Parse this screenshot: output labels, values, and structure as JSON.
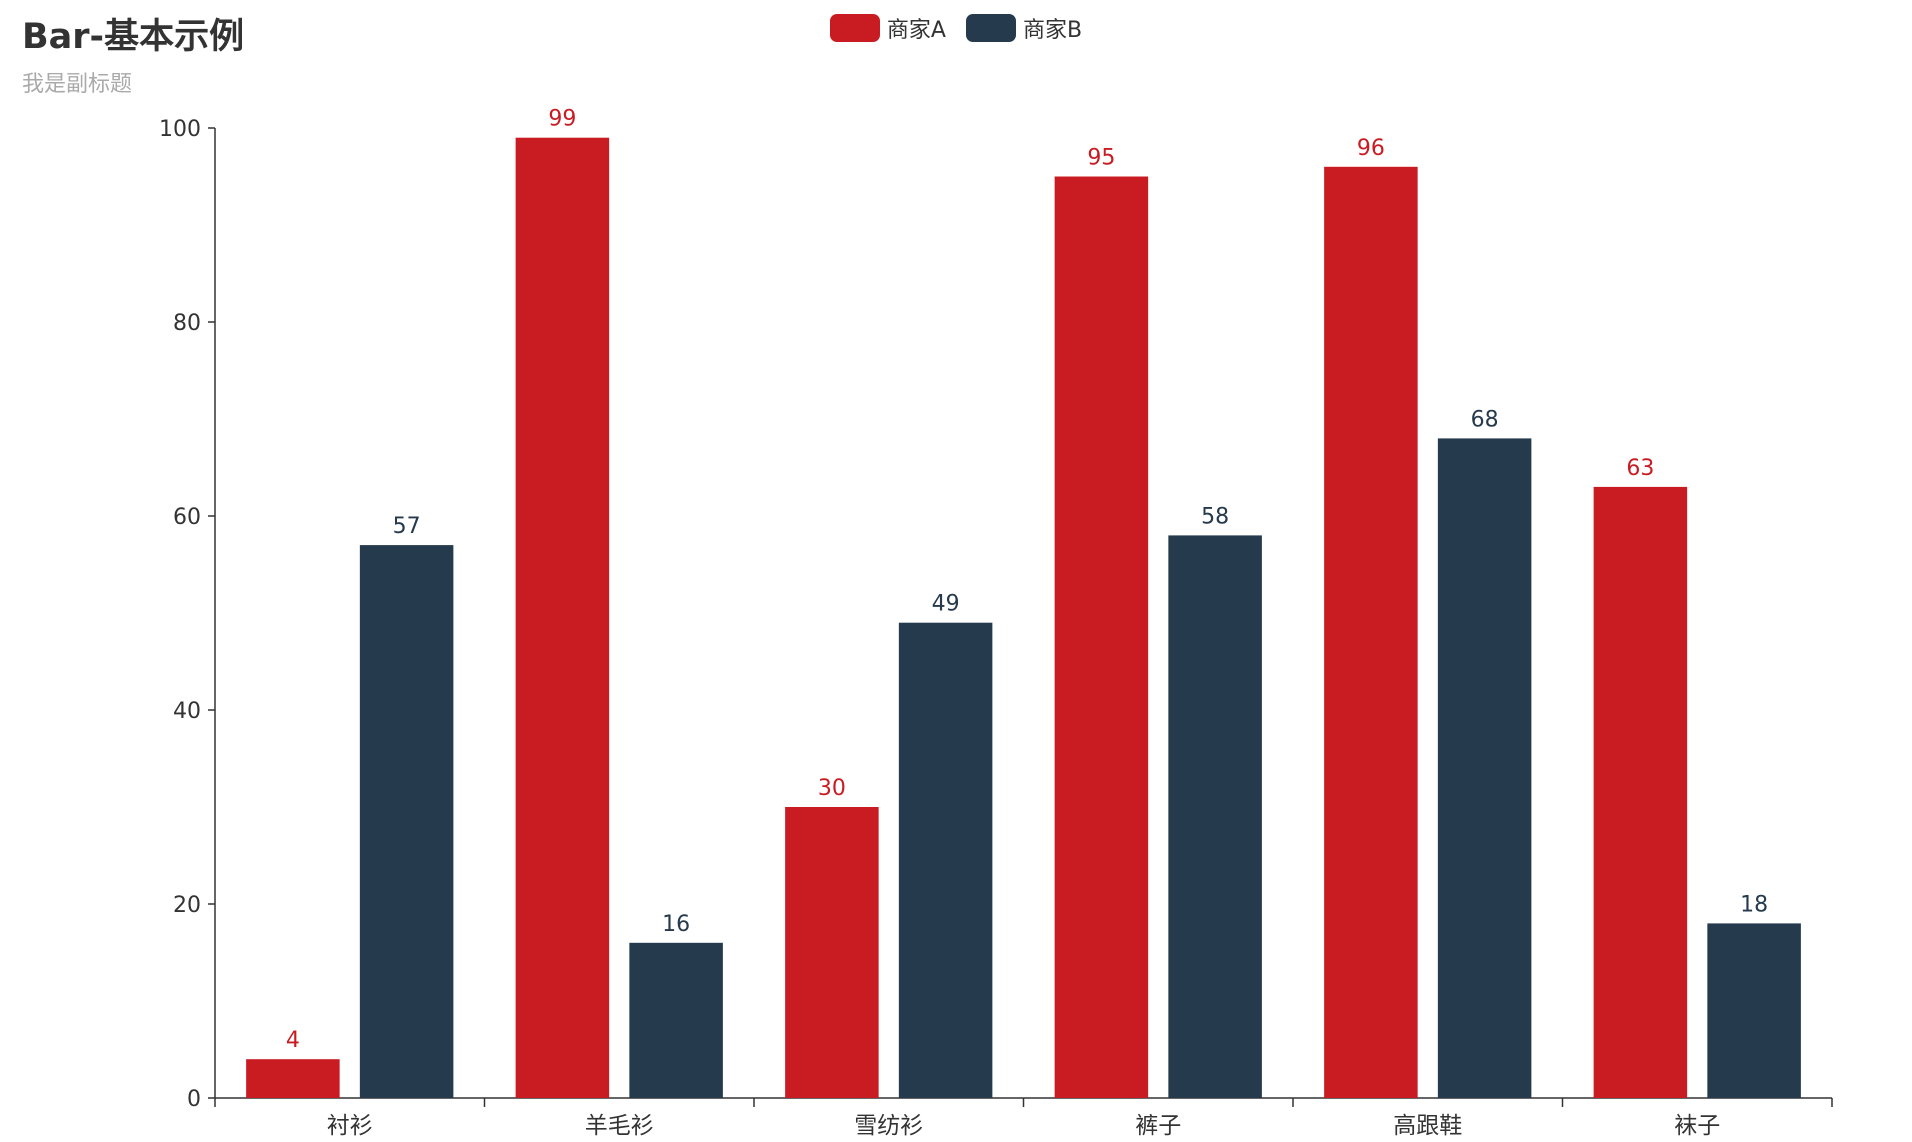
{
  "chart_data": {
    "type": "bar",
    "title": "Bar-基本示例",
    "subtitle": "我是副标题",
    "categories": [
      "衬衫",
      "羊毛衫",
      "雪纺衫",
      "裤子",
      "高跟鞋",
      "袜子"
    ],
    "series": [
      {
        "name": "商家A",
        "values": [
          4,
          99,
          30,
          95,
          96,
          63
        ],
        "color": "#c91c22"
      },
      {
        "name": "商家B",
        "values": [
          57,
          16,
          49,
          58,
          68,
          18
        ],
        "color": "#253a4c"
      }
    ],
    "ylim": [
      0,
      100
    ],
    "yticks": [
      0,
      20,
      40,
      60,
      80,
      100
    ],
    "xlabel": "",
    "ylabel": "",
    "legend_position": "top-center",
    "grid": false
  },
  "colors": {
    "axis": "#333333",
    "title": "#333333",
    "subtitle": "#aaaaaa"
  }
}
